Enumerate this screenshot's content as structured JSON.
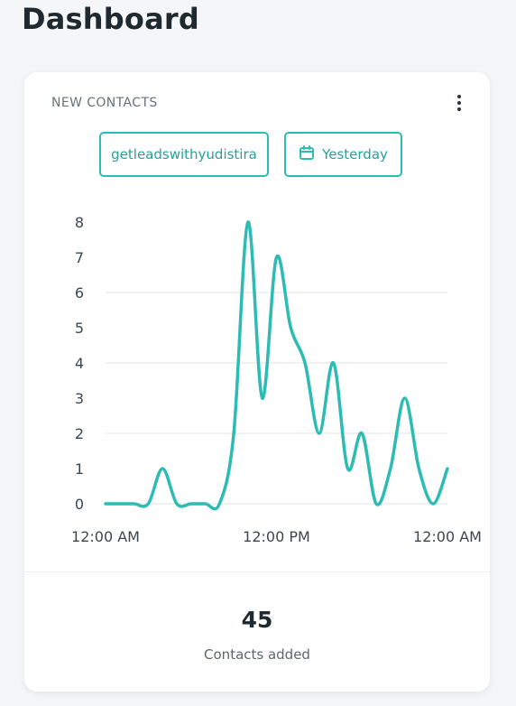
{
  "page": {
    "title": "Dashboard"
  },
  "card": {
    "title": "NEW CONTACTS",
    "menu_icon": "more-vertical-icon",
    "filters": {
      "account_label": "getleadswithyudistira",
      "date_label": "Yesterday",
      "date_icon": "calendar-icon"
    },
    "summary": {
      "value": "45",
      "label": "Contacts added"
    }
  },
  "colors": {
    "accent": "#2cbcb4",
    "grid": "#dfe3e6",
    "axis_text": "#3c474d",
    "title_text": "#1f2a30"
  },
  "chart_data": {
    "type": "line",
    "title": "",
    "xlabel": "",
    "ylabel": "",
    "xlim": [
      0,
      24
    ],
    "ylim": [
      0,
      8
    ],
    "y_ticks": [
      0,
      1,
      2,
      3,
      4,
      5,
      6,
      7,
      8
    ],
    "x_ticks": [
      {
        "value": 0,
        "label": "12:00 AM"
      },
      {
        "value": 12,
        "label": "12:00 PM"
      },
      {
        "value": 24,
        "label": "12:00 AM"
      }
    ],
    "grid": true,
    "series": [
      {
        "x": [
          0,
          1,
          2,
          3,
          4,
          5,
          6,
          7,
          8,
          9,
          10,
          11,
          12,
          13,
          14,
          15,
          16,
          17,
          18,
          19,
          20,
          21,
          22,
          23,
          24
        ],
        "values": [
          0,
          0,
          0,
          0,
          1,
          0,
          0,
          0,
          0,
          2,
          8,
          3,
          7,
          5,
          4,
          2,
          4,
          1,
          2,
          0,
          1,
          3,
          1,
          0,
          1
        ]
      }
    ]
  }
}
